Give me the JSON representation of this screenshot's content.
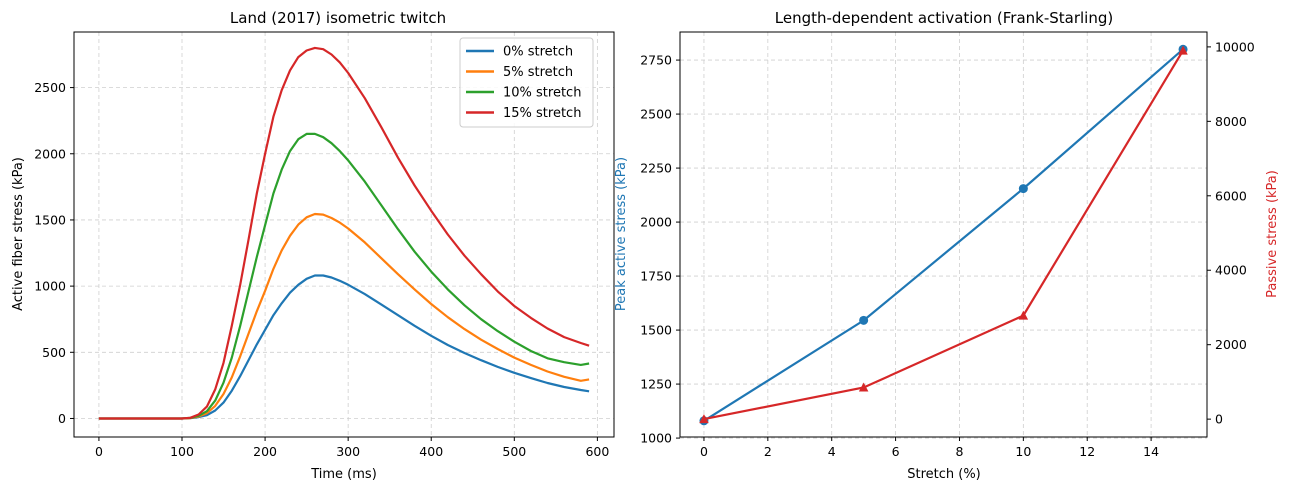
{
  "colors": {
    "blue": "#1f77b4",
    "orange": "#ff7f0e",
    "green": "#2ca02c",
    "red": "#d62728"
  },
  "chart_data": [
    {
      "type": "line",
      "title": "Land (2017) isometric twitch",
      "xlabel": "Time (ms)",
      "ylabel": "Active fiber stress (kPa)",
      "xlim": [
        -30,
        620
      ],
      "ylim": [
        -140,
        2920
      ],
      "xticks": [
        "0",
        "100",
        "200",
        "300",
        "400",
        "500",
        "600"
      ],
      "yticks": [
        "0",
        "500",
        "1000",
        "1500",
        "2000",
        "2500"
      ],
      "grid": true,
      "legend": "top-right",
      "x": [
        0,
        100,
        110,
        120,
        130,
        140,
        150,
        160,
        170,
        180,
        190,
        200,
        210,
        220,
        230,
        240,
        250,
        260,
        270,
        280,
        290,
        300,
        320,
        340,
        360,
        380,
        400,
        420,
        440,
        460,
        480,
        500,
        520,
        540,
        560,
        580,
        590
      ],
      "series": [
        {
          "name": "0% stretch",
          "color": "#1f77b4",
          "values": [
            0,
            0,
            2,
            10,
            25,
            60,
            120,
            210,
            320,
            440,
            560,
            670,
            780,
            870,
            950,
            1010,
            1055,
            1080,
            1080,
            1065,
            1040,
            1010,
            940,
            860,
            780,
            700,
            625,
            555,
            495,
            440,
            390,
            345,
            305,
            268,
            238,
            215,
            205
          ]
        },
        {
          "name": "5% stretch",
          "color": "#ff7f0e",
          "values": [
            0,
            0,
            3,
            15,
            40,
            95,
            185,
            310,
            470,
            640,
            810,
            965,
            1130,
            1270,
            1380,
            1465,
            1520,
            1545,
            1540,
            1515,
            1480,
            1435,
            1330,
            1210,
            1090,
            975,
            865,
            765,
            675,
            595,
            525,
            460,
            405,
            355,
            315,
            285,
            295
          ]
        },
        {
          "name": "10% stretch",
          "color": "#2ca02c",
          "values": [
            0,
            0,
            4,
            20,
            55,
            135,
            270,
            460,
            700,
            960,
            1220,
            1460,
            1700,
            1880,
            2020,
            2110,
            2150,
            2150,
            2125,
            2080,
            2020,
            1950,
            1790,
            1610,
            1430,
            1260,
            1110,
            975,
            855,
            750,
            660,
            580,
            510,
            455,
            425,
            405,
            415
          ]
        },
        {
          "name": "15% stretch",
          "color": "#d62728",
          "values": [
            0,
            0,
            5,
            30,
            90,
            220,
            420,
            700,
            1010,
            1350,
            1700,
            2000,
            2280,
            2480,
            2630,
            2730,
            2780,
            2800,
            2790,
            2750,
            2690,
            2610,
            2420,
            2200,
            1970,
            1760,
            1570,
            1390,
            1230,
            1090,
            960,
            850,
            760,
            680,
            615,
            570,
            550
          ]
        }
      ]
    },
    {
      "type": "line",
      "title": "Length-dependent activation (Frank-Starling)",
      "xlabel": "Stretch (%)",
      "ylabel": "Peak active stress (kPa)",
      "ylabel_right": "Passive stress (kPa)",
      "xlim": [
        -0.75,
        15.75
      ],
      "ylim": [
        1005,
        2880
      ],
      "ylim_right": [
        -480,
        10400
      ],
      "xticks": [
        "0",
        "2",
        "4",
        "6",
        "8",
        "10",
        "12",
        "14"
      ],
      "yticks": [
        "1000",
        "1250",
        "1500",
        "1750",
        "2000",
        "2250",
        "2500",
        "2750"
      ],
      "yticks_right": [
        "0",
        "2000",
        "4000",
        "6000",
        "8000",
        "10000"
      ],
      "grid": true,
      "x": [
        0,
        5,
        10,
        15
      ],
      "series": [
        {
          "color": "#1f77b4",
          "axis": "left",
          "marker": "circle",
          "values": [
            1080,
            1545,
            2155,
            2800
          ]
        },
        {
          "color": "#d62728",
          "axis": "right",
          "marker": "triangle",
          "values": [
            0,
            850,
            2780,
            9900
          ]
        }
      ]
    }
  ]
}
